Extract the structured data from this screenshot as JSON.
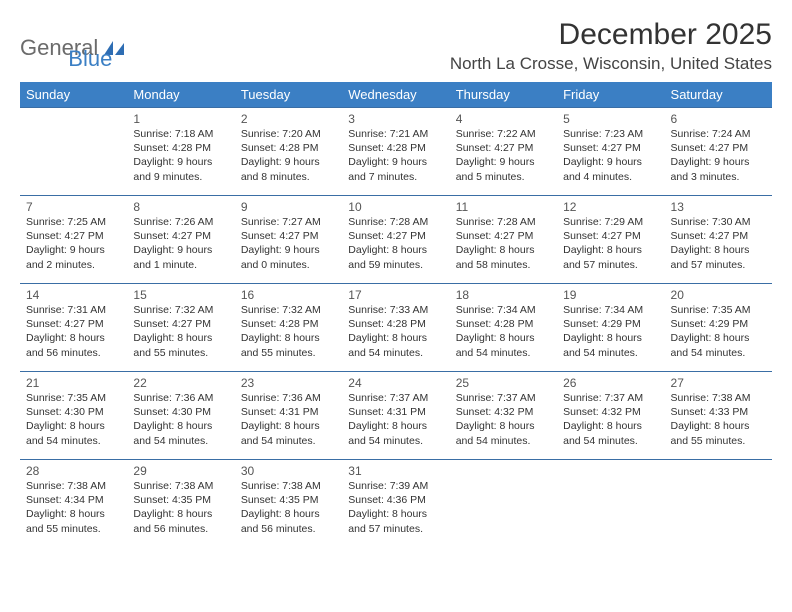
{
  "branding": {
    "logo_text_1": "General",
    "logo_text_2": "Blue",
    "logo_color_gray": "#6b6b6b",
    "logo_color_blue": "#3b7fc4"
  },
  "header": {
    "month_title": "December 2025",
    "location": "North La Crosse, Wisconsin, United States"
  },
  "colors": {
    "header_bg": "#3b7fc4",
    "header_text": "#ffffff",
    "cell_border": "#3a6ea5",
    "text": "#333333",
    "background": "#ffffff"
  },
  "fonts": {
    "title_size": 30,
    "location_size": 17,
    "dayhead_size": 13,
    "daynum_size": 12,
    "dayinfo_size": 10.5
  },
  "day_headers": [
    "Sunday",
    "Monday",
    "Tuesday",
    "Wednesday",
    "Thursday",
    "Friday",
    "Saturday"
  ],
  "weeks": [
    [
      {
        "day": "",
        "sunrise": "",
        "sunset": "",
        "daylight": ""
      },
      {
        "day": "1",
        "sunrise": "Sunrise: 7:18 AM",
        "sunset": "Sunset: 4:28 PM",
        "daylight": "Daylight: 9 hours and 9 minutes."
      },
      {
        "day": "2",
        "sunrise": "Sunrise: 7:20 AM",
        "sunset": "Sunset: 4:28 PM",
        "daylight": "Daylight: 9 hours and 8 minutes."
      },
      {
        "day": "3",
        "sunrise": "Sunrise: 7:21 AM",
        "sunset": "Sunset: 4:28 PM",
        "daylight": "Daylight: 9 hours and 7 minutes."
      },
      {
        "day": "4",
        "sunrise": "Sunrise: 7:22 AM",
        "sunset": "Sunset: 4:27 PM",
        "daylight": "Daylight: 9 hours and 5 minutes."
      },
      {
        "day": "5",
        "sunrise": "Sunrise: 7:23 AM",
        "sunset": "Sunset: 4:27 PM",
        "daylight": "Daylight: 9 hours and 4 minutes."
      },
      {
        "day": "6",
        "sunrise": "Sunrise: 7:24 AM",
        "sunset": "Sunset: 4:27 PM",
        "daylight": "Daylight: 9 hours and 3 minutes."
      }
    ],
    [
      {
        "day": "7",
        "sunrise": "Sunrise: 7:25 AM",
        "sunset": "Sunset: 4:27 PM",
        "daylight": "Daylight: 9 hours and 2 minutes."
      },
      {
        "day": "8",
        "sunrise": "Sunrise: 7:26 AM",
        "sunset": "Sunset: 4:27 PM",
        "daylight": "Daylight: 9 hours and 1 minute."
      },
      {
        "day": "9",
        "sunrise": "Sunrise: 7:27 AM",
        "sunset": "Sunset: 4:27 PM",
        "daylight": "Daylight: 9 hours and 0 minutes."
      },
      {
        "day": "10",
        "sunrise": "Sunrise: 7:28 AM",
        "sunset": "Sunset: 4:27 PM",
        "daylight": "Daylight: 8 hours and 59 minutes."
      },
      {
        "day": "11",
        "sunrise": "Sunrise: 7:28 AM",
        "sunset": "Sunset: 4:27 PM",
        "daylight": "Daylight: 8 hours and 58 minutes."
      },
      {
        "day": "12",
        "sunrise": "Sunrise: 7:29 AM",
        "sunset": "Sunset: 4:27 PM",
        "daylight": "Daylight: 8 hours and 57 minutes."
      },
      {
        "day": "13",
        "sunrise": "Sunrise: 7:30 AM",
        "sunset": "Sunset: 4:27 PM",
        "daylight": "Daylight: 8 hours and 57 minutes."
      }
    ],
    [
      {
        "day": "14",
        "sunrise": "Sunrise: 7:31 AM",
        "sunset": "Sunset: 4:27 PM",
        "daylight": "Daylight: 8 hours and 56 minutes."
      },
      {
        "day": "15",
        "sunrise": "Sunrise: 7:32 AM",
        "sunset": "Sunset: 4:27 PM",
        "daylight": "Daylight: 8 hours and 55 minutes."
      },
      {
        "day": "16",
        "sunrise": "Sunrise: 7:32 AM",
        "sunset": "Sunset: 4:28 PM",
        "daylight": "Daylight: 8 hours and 55 minutes."
      },
      {
        "day": "17",
        "sunrise": "Sunrise: 7:33 AM",
        "sunset": "Sunset: 4:28 PM",
        "daylight": "Daylight: 8 hours and 54 minutes."
      },
      {
        "day": "18",
        "sunrise": "Sunrise: 7:34 AM",
        "sunset": "Sunset: 4:28 PM",
        "daylight": "Daylight: 8 hours and 54 minutes."
      },
      {
        "day": "19",
        "sunrise": "Sunrise: 7:34 AM",
        "sunset": "Sunset: 4:29 PM",
        "daylight": "Daylight: 8 hours and 54 minutes."
      },
      {
        "day": "20",
        "sunrise": "Sunrise: 7:35 AM",
        "sunset": "Sunset: 4:29 PM",
        "daylight": "Daylight: 8 hours and 54 minutes."
      }
    ],
    [
      {
        "day": "21",
        "sunrise": "Sunrise: 7:35 AM",
        "sunset": "Sunset: 4:30 PM",
        "daylight": "Daylight: 8 hours and 54 minutes."
      },
      {
        "day": "22",
        "sunrise": "Sunrise: 7:36 AM",
        "sunset": "Sunset: 4:30 PM",
        "daylight": "Daylight: 8 hours and 54 minutes."
      },
      {
        "day": "23",
        "sunrise": "Sunrise: 7:36 AM",
        "sunset": "Sunset: 4:31 PM",
        "daylight": "Daylight: 8 hours and 54 minutes."
      },
      {
        "day": "24",
        "sunrise": "Sunrise: 7:37 AM",
        "sunset": "Sunset: 4:31 PM",
        "daylight": "Daylight: 8 hours and 54 minutes."
      },
      {
        "day": "25",
        "sunrise": "Sunrise: 7:37 AM",
        "sunset": "Sunset: 4:32 PM",
        "daylight": "Daylight: 8 hours and 54 minutes."
      },
      {
        "day": "26",
        "sunrise": "Sunrise: 7:37 AM",
        "sunset": "Sunset: 4:32 PM",
        "daylight": "Daylight: 8 hours and 54 minutes."
      },
      {
        "day": "27",
        "sunrise": "Sunrise: 7:38 AM",
        "sunset": "Sunset: 4:33 PM",
        "daylight": "Daylight: 8 hours and 55 minutes."
      }
    ],
    [
      {
        "day": "28",
        "sunrise": "Sunrise: 7:38 AM",
        "sunset": "Sunset: 4:34 PM",
        "daylight": "Daylight: 8 hours and 55 minutes."
      },
      {
        "day": "29",
        "sunrise": "Sunrise: 7:38 AM",
        "sunset": "Sunset: 4:35 PM",
        "daylight": "Daylight: 8 hours and 56 minutes."
      },
      {
        "day": "30",
        "sunrise": "Sunrise: 7:38 AM",
        "sunset": "Sunset: 4:35 PM",
        "daylight": "Daylight: 8 hours and 56 minutes."
      },
      {
        "day": "31",
        "sunrise": "Sunrise: 7:39 AM",
        "sunset": "Sunset: 4:36 PM",
        "daylight": "Daylight: 8 hours and 57 minutes."
      },
      {
        "day": "",
        "sunrise": "",
        "sunset": "",
        "daylight": ""
      },
      {
        "day": "",
        "sunrise": "",
        "sunset": "",
        "daylight": ""
      },
      {
        "day": "",
        "sunrise": "",
        "sunset": "",
        "daylight": ""
      }
    ]
  ]
}
